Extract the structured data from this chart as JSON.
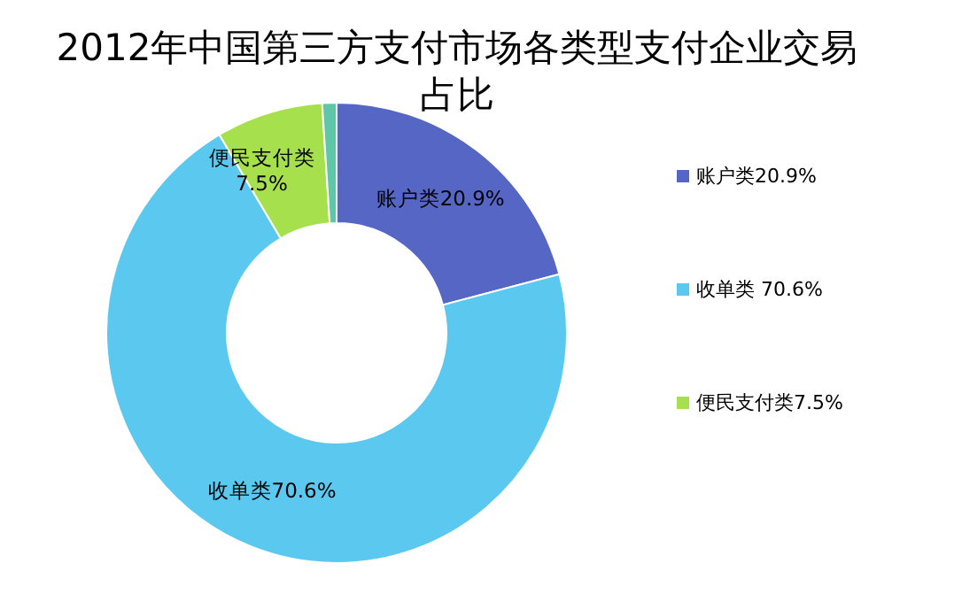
{
  "chart_data": {
    "type": "donut",
    "title": "2012年中国第三方支付市场各类型支付企业交易占比",
    "categories": [
      "账户类20.9%",
      "收单类 70.6%",
      "便民支付类7.5%",
      null
    ],
    "values": [
      20.9,
      70.6,
      7.5,
      1.0
    ],
    "colors": [
      "#5566c4",
      "#5bc8ef",
      "#a6e04c",
      "#5fc6a8"
    ],
    "value_labels": [
      "账户类20.9%",
      "收单类70.6%",
      "便民支付类\n7.5%",
      null
    ],
    "legend": "right"
  }
}
